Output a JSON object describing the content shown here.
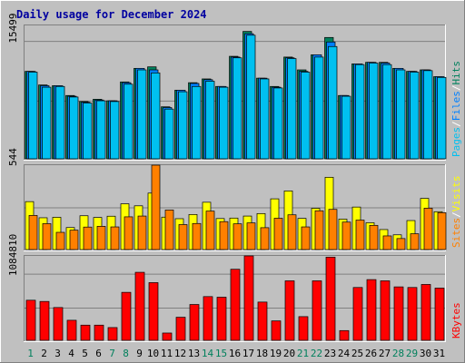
{
  "chart_data": {
    "type": "bar",
    "title": "Daily usage for December 2024",
    "categories": [
      "1",
      "2",
      "3",
      "4",
      "5",
      "6",
      "7",
      "8",
      "9",
      "10",
      "11",
      "12",
      "13",
      "14",
      "15",
      "16",
      "17",
      "18",
      "19",
      "20",
      "21",
      "22",
      "23",
      "24",
      "25",
      "26",
      "27",
      "28",
      "29",
      "30",
      "31"
    ],
    "weekend_days": [
      "1",
      "7",
      "8",
      "14",
      "15",
      "21",
      "22",
      "28",
      "29"
    ],
    "panels": [
      {
        "id": "hits",
        "ylabel_max": "15499",
        "ymax": 17700,
        "legend": [
          "Pages",
          "/",
          "Files",
          "/",
          "Hits"
        ],
        "legend_colors": [
          "#00c0f0",
          "#ffffff",
          "#0080ff",
          "#ffffff",
          "#00805c"
        ],
        "series": [
          {
            "name": "Hits",
            "color": "#00805c",
            "values": [
              11600,
              9800,
              9700,
              8400,
              7600,
              7900,
              7700,
              10200,
              12000,
              12200,
              6900,
              9100,
              10100,
              10600,
              9600,
              13600,
              16900,
              10700,
              9600,
              13500,
              11800,
              13800,
              16100,
              8400,
              12600,
              12800,
              12800,
              12000,
              11600,
              11800,
              10900
            ]
          },
          {
            "name": "Files",
            "color": "#0080ff",
            "values": [
              11600,
              9700,
              9700,
              8300,
              7500,
              7800,
              7700,
              10100,
              12000,
              11800,
              6800,
              9100,
              10000,
              10500,
              9600,
              13500,
              16600,
              10700,
              9500,
              13400,
              11600,
              13800,
              15500,
              8400,
              12600,
              12800,
              12700,
              12000,
              11600,
              11800,
              10900
            ]
          },
          {
            "name": "Pages",
            "color": "#00c0f0",
            "values": [
              11500,
              9500,
              9600,
              8200,
              7400,
              7700,
              7600,
              9900,
              11800,
              11400,
              6600,
              8900,
              9600,
              10300,
              9500,
              13400,
              16400,
              10600,
              9400,
              13300,
              11500,
              13500,
              14900,
              8300,
              12500,
              12700,
              12500,
              11800,
              11500,
              11700,
              10800
            ]
          }
        ]
      },
      {
        "id": "visits",
        "ylabel_max": "544",
        "ymax": 544,
        "legend": [
          "Sites",
          "/",
          "Visits"
        ],
        "legend_colors": [
          "#ff8000",
          "#ffffff",
          "#ffff00"
        ],
        "series": [
          {
            "name": "Visits",
            "color": "#ffff00",
            "values": [
              309,
              205,
              208,
              142,
              218,
              207,
              215,
              295,
              282,
              364,
              209,
              199,
              226,
              305,
              200,
              203,
              216,
              232,
              327,
              378,
              201,
              266,
              466,
              196,
              274,
              173,
              129,
              95,
              187,
              330,
              244
            ]
          },
          {
            "name": "Sites",
            "color": "#ff8000",
            "values": [
              220,
              167,
              111,
              125,
              145,
              150,
              146,
              211,
              216,
              544,
              255,
              161,
              168,
              248,
              180,
              166,
              172,
              141,
              202,
              224,
              146,
              250,
              259,
              177,
              190,
              156,
              88,
              71,
              102,
              267,
              238
            ]
          }
        ]
      },
      {
        "id": "kbytes",
        "ylabel_max": "1084810",
        "ymax": 1390000,
        "legend": [
          "KBytes"
        ],
        "legend_colors": [
          "#ff0000"
        ],
        "series": [
          {
            "name": "KBytes",
            "color": "#ff0000",
            "values": [
              660000,
              640000,
              540000,
              330000,
              250000,
              250000,
              210000,
              790000,
              1120000,
              950000,
              120000,
              380000,
              590000,
              720000,
              710000,
              1170000,
              1390000,
              630000,
              320000,
              980000,
              390000,
              980000,
              1370000,
              160000,
              870000,
              1000000,
              980000,
              880000,
              870000,
              920000,
              860000
            ]
          }
        ]
      }
    ]
  }
}
